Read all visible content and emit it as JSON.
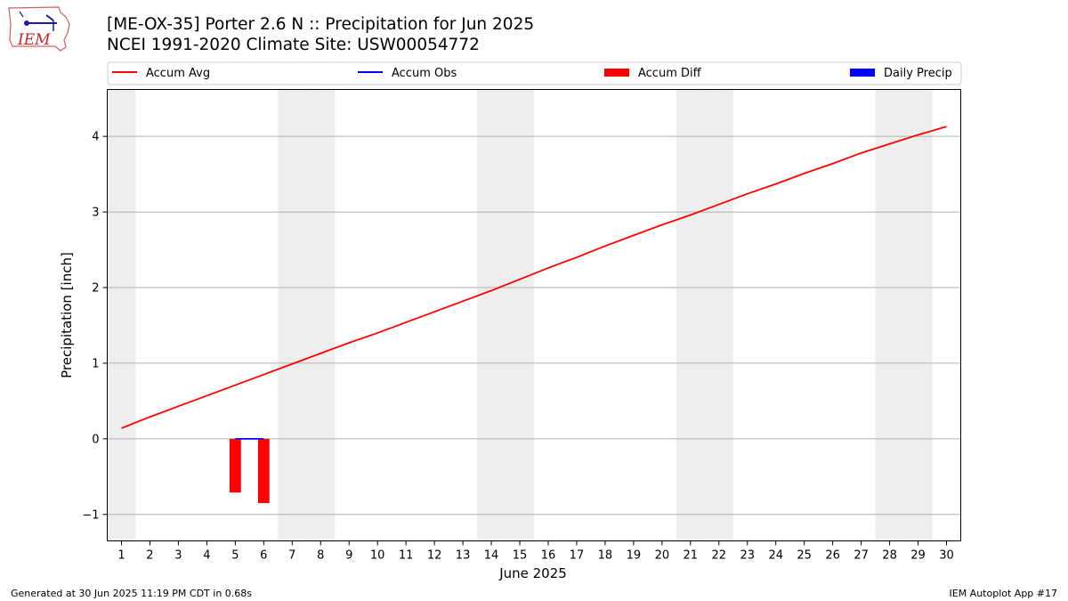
{
  "header": {
    "title_line1": "[ME-OX-35] Porter 2.6 N :: Precipitation for Jun 2025",
    "title_line2": "NCEI 1991-2020 Climate Site: USW00054772",
    "logo_text": "IEM"
  },
  "footer": {
    "generated": "Generated at 30 Jun 2025 11:19 PM CDT in 0.68s",
    "app": "IEM Autoplot App #17"
  },
  "colors": {
    "accum_avg": "#ff0000",
    "accum_obs": "#0000ff",
    "accum_diff": "#ff0000",
    "daily_precip": "#0000ff",
    "weekend_shade": "#eeeeee",
    "grid": "#b0b0b0"
  },
  "chart_data": {
    "type": "line",
    "xlabel": "June 2025",
    "ylabel": "Precipitation [inch]",
    "x": [
      1,
      2,
      3,
      4,
      5,
      6,
      7,
      8,
      9,
      10,
      11,
      12,
      13,
      14,
      15,
      16,
      17,
      18,
      19,
      20,
      21,
      22,
      23,
      24,
      25,
      26,
      27,
      28,
      29,
      30
    ],
    "xlim": [
      0.5,
      30.5
    ],
    "ylim": [
      -1.35,
      4.62
    ],
    "yticks": [
      -1,
      0,
      1,
      2,
      3,
      4
    ],
    "ytick_labels": [
      "−1",
      "0",
      "1",
      "2",
      "3",
      "4"
    ],
    "grid": "horizontal",
    "legend_position": "top, above plot",
    "legend": [
      {
        "label": "Accum Avg",
        "kind": "line",
        "color": "#ff0000"
      },
      {
        "label": "Accum Obs",
        "kind": "line",
        "color": "#0000ff"
      },
      {
        "label": "Accum Diff",
        "kind": "bar",
        "color": "#ff0000"
      },
      {
        "label": "Daily Precip",
        "kind": "bar",
        "color": "#0000ff"
      }
    ],
    "shaded_weekend_days": [
      1,
      7,
      8,
      14,
      15,
      21,
      22,
      28,
      29
    ],
    "series": [
      {
        "name": "Accum Avg",
        "type": "line",
        "color": "#ff0000",
        "x": [
          1,
          2,
          3,
          4,
          5,
          6,
          7,
          8,
          9,
          10,
          11,
          12,
          13,
          14,
          15,
          16,
          17,
          18,
          19,
          20,
          21,
          22,
          23,
          24,
          25,
          26,
          27,
          28,
          29,
          30
        ],
        "values": [
          0.14,
          0.29,
          0.43,
          0.57,
          0.71,
          0.85,
          0.99,
          1.13,
          1.27,
          1.4,
          1.54,
          1.68,
          1.82,
          1.96,
          2.11,
          2.26,
          2.4,
          2.55,
          2.69,
          2.83,
          2.96,
          3.1,
          3.24,
          3.37,
          3.51,
          3.64,
          3.78,
          3.9,
          4.02,
          4.13
        ]
      },
      {
        "name": "Accum Obs",
        "type": "line",
        "color": "#0000ff",
        "x": [
          5,
          6
        ],
        "values": [
          0.0,
          0.0
        ]
      },
      {
        "name": "Accum Diff",
        "type": "bar",
        "color": "#ff0000",
        "x": [
          5,
          6
        ],
        "values": [
          -0.71,
          -0.85
        ]
      },
      {
        "name": "Daily Precip",
        "type": "bar",
        "color": "#0000ff",
        "x": [
          5,
          6
        ],
        "values": [
          0.0,
          0.0
        ]
      }
    ]
  }
}
